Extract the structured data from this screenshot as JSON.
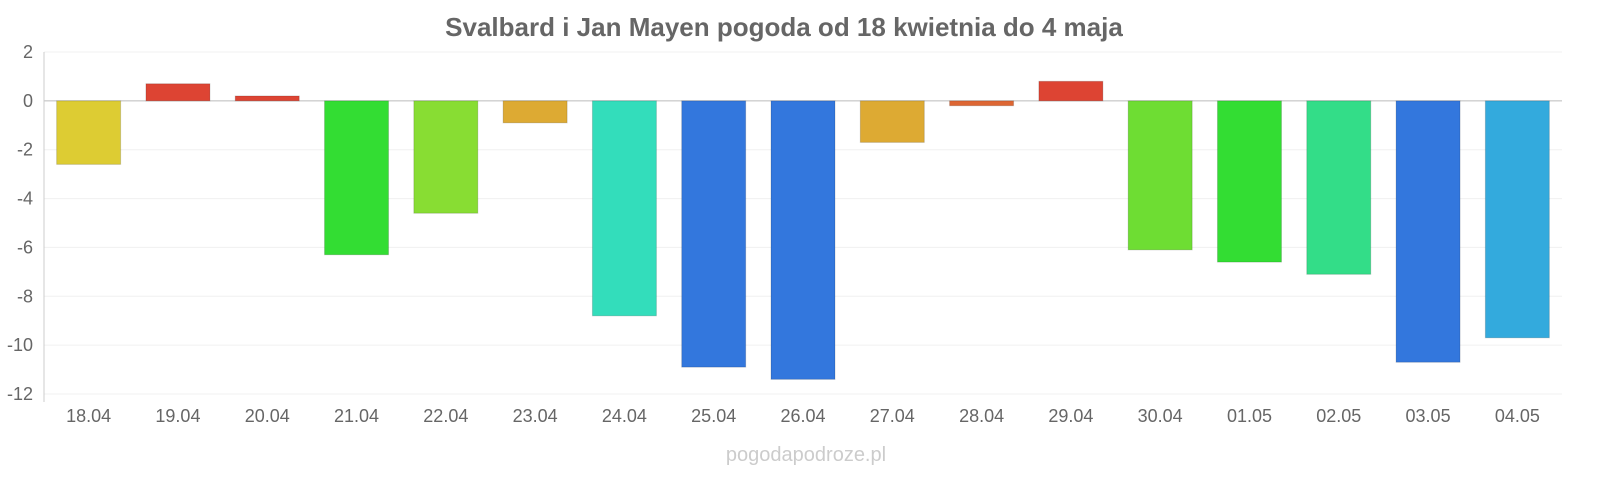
{
  "chart_data": {
    "type": "bar",
    "title": "Svalbard i Jan Mayen pogoda od 18 kwietnia do 4 maja",
    "xlabel": "",
    "ylabel": "",
    "ylim": [
      -12,
      2
    ],
    "yticks": [
      2,
      0,
      -2,
      -4,
      -6,
      -8,
      -10,
      -12
    ],
    "grid": true,
    "categories": [
      "18.04",
      "19.04",
      "20.04",
      "21.04",
      "22.04",
      "23.04",
      "24.04",
      "25.04",
      "26.04",
      "27.04",
      "28.04",
      "29.04",
      "30.04",
      "01.05",
      "02.05",
      "03.05",
      "04.05"
    ],
    "values": [
      -2.6,
      0.7,
      0.2,
      -6.3,
      -4.6,
      -0.9,
      -8.8,
      -10.9,
      -11.4,
      -1.7,
      -0.2,
      0.8,
      -6.1,
      -6.6,
      -7.1,
      -10.7,
      -9.7
    ],
    "colors": [
      "#ddcc33",
      "#dd4433",
      "#dd4433",
      "#33dd33",
      "#88dd33",
      "#ddaa33",
      "#33ddbb",
      "#3377dd",
      "#3377dd",
      "#ddaa33",
      "#dd6633",
      "#dd4433",
      "#6edd33",
      "#33dd33",
      "#33dd88",
      "#3377dd",
      "#33aadd"
    ]
  },
  "watermark": "pogodapodroze.pl"
}
